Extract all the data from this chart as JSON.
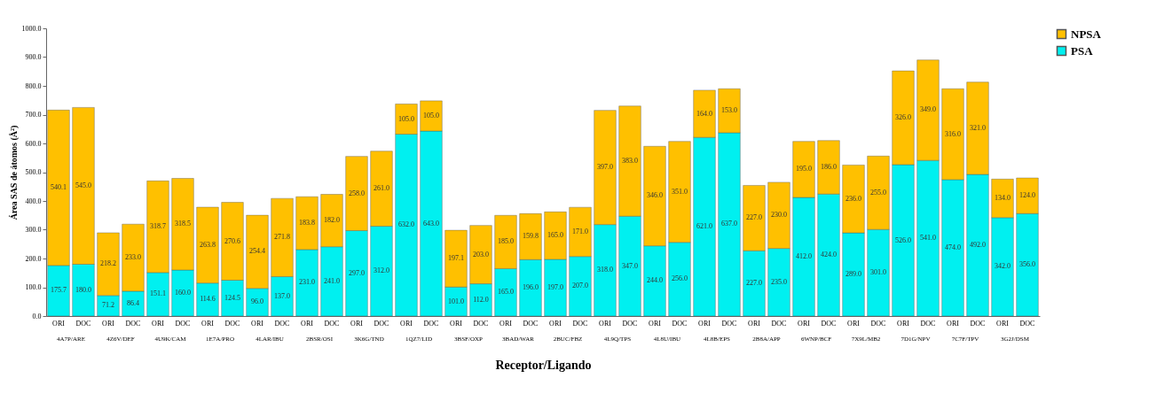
{
  "chart_data": {
    "type": "bar",
    "stacked": true,
    "xlabel": "Receptor/Ligando",
    "ylabel": "Área SAS de átomos (Å²)",
    "categories": [
      "ORI",
      "DOC",
      "ORI",
      "DOC",
      "ORI",
      "DOC",
      "ORI",
      "DOC",
      "ORI",
      "DOC",
      "ORI",
      "DOC",
      "ORI",
      "DOC",
      "ORI",
      "DOC",
      "ORI",
      "DOC",
      "ORI",
      "DOC",
      "ORI",
      "DOC",
      "ORI",
      "DOC",
      "ORI",
      "DOC",
      "ORI",
      "DOC",
      "ORI",
      "DOC",
      "ORI",
      "DOC",
      "ORI",
      "DOC",
      "ORI",
      "DOC",
      "ORI",
      "DOC",
      "ORI",
      "DOC"
    ],
    "annotations": [
      "4A7P/ARE",
      "4Z6V/DEF",
      "4U9K/CAM",
      "1E7A/PRO",
      "4LAR/IBU",
      "2BSR/OSI",
      "3K6G/TND",
      "1QZ7/LID",
      "3BSF/OXP",
      "3BAD/WAR",
      "2BUC/FBZ",
      "4L9Q/TPS",
      "4L8U/IBU",
      "4L8B/EPS",
      "2B8A/APP",
      "6WNP/BCF",
      "7X9L/MB2",
      "7D1G/NPV",
      "7C7F/TPV",
      "3G2J/DSM"
    ],
    "series": [
      {
        "name": "PSA",
        "color": "#00f0f0",
        "values": [
          175.7,
          180.0,
          71.2,
          86.4,
          151.1,
          160.0,
          114.6,
          124.5,
          96.0,
          137.0,
          231.0,
          241.0,
          297.0,
          312.0,
          632.0,
          643.0,
          101.0,
          112.0,
          165.0,
          196.0,
          197.0,
          207.0,
          318.0,
          347.0,
          244.0,
          256.0,
          621.0,
          637.0,
          227.0,
          235.0,
          412.0,
          424.0,
          289.0,
          301.0,
          526.0,
          541.0,
          474.0,
          492.0,
          342.0,
          356.0
        ],
        "value_labels": [
          "175.7",
          "180.0",
          "71.2",
          "86.4",
          "151.1",
          "160.0",
          "114.6",
          "124.5",
          "96.0",
          "137.0",
          "231.0",
          "241.0",
          "297.0",
          "312.0",
          "632.0",
          "643.0",
          "101.0",
          "112.0",
          "165.0",
          "196.0",
          "197.0",
          "207.0",
          "318.0",
          "347.0",
          "244.0",
          "256.0",
          "621.0",
          "637.0",
          "227.0",
          "235.0",
          "412.0",
          "424.0",
          "289.0",
          "301.0",
          "526.0",
          "541.0",
          "474.0",
          "492.0",
          "342.0",
          "356.0"
        ]
      },
      {
        "name": "NPSA",
        "color": "#ffc000",
        "values": [
          540.1,
          545.0,
          218.2,
          233.0,
          318.7,
          318.5,
          263.8,
          270.6,
          254.4,
          271.8,
          183.8,
          182.0,
          258.0,
          261.0,
          105.0,
          105.0,
          197.1,
          203.0,
          185.0,
          159.8,
          165.0,
          171.0,
          397.0,
          383.0,
          346.0,
          351.0,
          164.0,
          153.0,
          227.0,
          230.0,
          195.0,
          186.0,
          236.0,
          255.0,
          326.0,
          349.0,
          316.0,
          321.0,
          134.0,
          124.0
        ],
        "value_labels": [
          "540.1",
          "545.0",
          "218.2",
          "233.0",
          "318.7",
          "318.5",
          "263.8",
          "270.6",
          "254.4",
          "271.8",
          "183.8",
          "182.0",
          "258.0",
          "261.0",
          "105.0",
          "105.0",
          "197.1",
          "203.0",
          "185.0",
          "159.8",
          "165.0",
          "171.0",
          "397.0",
          "383.0",
          "346.0",
          "351.0",
          "164.0",
          "153.0",
          "227.0",
          "230.0",
          "195.0",
          "186.0",
          "236.0",
          "255.0",
          "326.0",
          "349.0",
          "316.0",
          "321.0",
          "134.0",
          "124.0"
        ]
      }
    ],
    "ylim": [
      0,
      1000
    ],
    "yticks": [
      {
        "value": 0,
        "label": "0.0"
      },
      {
        "value": 100,
        "label": "100.0"
      },
      {
        "value": 200,
        "label": "200.0"
      },
      {
        "value": 300,
        "label": "300.0"
      },
      {
        "value": 400,
        "label": "400.0"
      },
      {
        "value": 500,
        "label": "500.0"
      },
      {
        "value": 600,
        "label": "600.0"
      },
      {
        "value": 700,
        "label": "700.0"
      },
      {
        "value": 800,
        "label": "800.0"
      },
      {
        "value": 900,
        "label": "900.0"
      },
      {
        "value": 1000,
        "label": "1000.0"
      }
    ],
    "grid": false,
    "legend": "right"
  }
}
